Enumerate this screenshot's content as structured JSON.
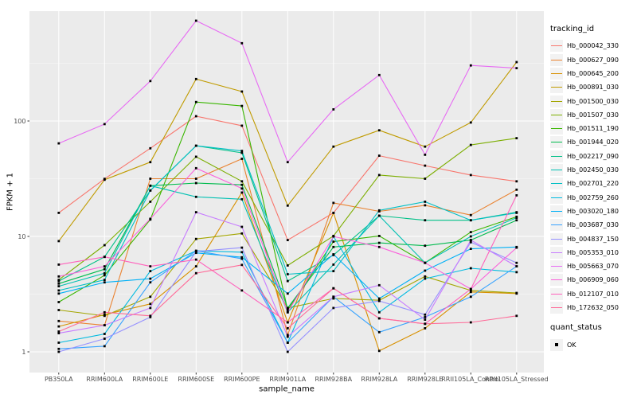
{
  "chart_data": {
    "type": "line",
    "title": "",
    "xlabel": "sample_name",
    "ylabel": "FPKM + 1",
    "y_scale": "log10",
    "y_axis": {
      "ticks": [
        1,
        10,
        100
      ],
      "minor_ticks": [
        3.16,
        31.6,
        316
      ],
      "range": [
        0.95,
        900
      ]
    },
    "categories": [
      "PB350LA",
      "RRIM600LA",
      "RRIM600LE",
      "RRIM600SE",
      "RRIM600PE",
      "RRIM901LA",
      "RRIM928BA",
      "RRIM928LA",
      "RRIM928LE",
      "RRII105LA_Control",
      "RRII105LA_Stressed"
    ],
    "series": [
      {
        "name": "Hb_000042_330",
        "color": "#F8766D",
        "values": [
          16,
          31.5,
          58,
          110,
          91,
          9.3,
          16,
          50,
          41,
          34,
          30
        ]
      },
      {
        "name": "Hb_000627_090",
        "color": "#EA8331",
        "values": [
          1.85,
          1.7,
          31.6,
          31.6,
          47,
          1.4,
          19.5,
          16.5,
          18.6,
          15.3,
          25.4
        ]
      },
      {
        "name": "Hb_000645_200",
        "color": "#D89000",
        "values": [
          1.66,
          2.1,
          2.6,
          5.5,
          24,
          1.8,
          16,
          1.02,
          1.6,
          3.3,
          3.2
        ]
      },
      {
        "name": "Hb_000891_030",
        "color": "#C09B00",
        "values": [
          9.1,
          31,
          44,
          231,
          180,
          18.5,
          60,
          83,
          60,
          97,
          324
        ]
      },
      {
        "name": "Hb_001500_030",
        "color": "#A3A500",
        "values": [
          2.3,
          2.05,
          3.0,
          9.5,
          10.6,
          2.4,
          2.9,
          2.8,
          4.5,
          3.4,
          3.24
        ]
      },
      {
        "name": "Hb_001507_030",
        "color": "#7CAE00",
        "values": [
          4.2,
          8.4,
          20,
          49,
          30,
          5.6,
          10.1,
          34,
          31.6,
          62,
          71
        ]
      },
      {
        "name": "Hb_001511_190",
        "color": "#39B600",
        "values": [
          2.7,
          4.6,
          14,
          146,
          135,
          2.3,
          9.0,
          10.1,
          5.9,
          10.9,
          14.8
        ]
      },
      {
        "name": "Hb_001944_020",
        "color": "#00BB4E",
        "values": [
          3.9,
          5.2,
          27.5,
          29,
          28,
          2.4,
          8.1,
          8.8,
          8.3,
          9.3,
          13.8
        ]
      },
      {
        "name": "Hb_002217_090",
        "color": "#00C087",
        "values": [
          4.1,
          6.65,
          25,
          61,
          53,
          4.1,
          6.9,
          15.1,
          13.8,
          13.8,
          16.2
        ]
      },
      {
        "name": "Hb_002450_030",
        "color": "#00C0B2",
        "values": [
          3.7,
          4.8,
          27.5,
          22,
          21,
          2.2,
          5.7,
          15.1,
          5.9,
          10.0,
          14.5
        ]
      },
      {
        "name": "Hb_002701_220",
        "color": "#00BFC4",
        "values": [
          3.4,
          4.2,
          25,
          61,
          55,
          4.7,
          5.0,
          16.8,
          20,
          13.8,
          16.0
        ]
      },
      {
        "name": "Hb_002759_260",
        "color": "#00BAE0",
        "values": [
          1.2,
          1.43,
          5.0,
          7.5,
          7.3,
          1.2,
          10.0,
          2.2,
          4.3,
          5.3,
          4.9
        ]
      },
      {
        "name": "Hb_003020_180",
        "color": "#00B0F6",
        "values": [
          3.2,
          4.0,
          4.3,
          7.2,
          6.6,
          3.2,
          7.0,
          2.9,
          5.05,
          7.8,
          8.1
        ]
      },
      {
        "name": "Hb_003687_030",
        "color": "#35A2FF",
        "values": [
          1.06,
          1.12,
          4.0,
          7.5,
          6.4,
          1.2,
          3.0,
          1.48,
          2.0,
          3.0,
          5.5
        ]
      },
      {
        "name": "Hb_004837_150",
        "color": "#9590FF",
        "values": [
          1.0,
          1.3,
          2.0,
          7.4,
          8.0,
          1.0,
          2.4,
          2.76,
          2.1,
          8.9,
          5.9
        ]
      },
      {
        "name": "Hb_005353_010",
        "color": "#C77CFF",
        "values": [
          1.45,
          1.7,
          2.4,
          16.2,
          12.1,
          1.35,
          3.0,
          3.78,
          1.9,
          9.3,
          5.5
        ]
      },
      {
        "name": "Hb_005663_070",
        "color": "#E76BF3",
        "values": [
          64,
          94,
          222,
          740,
          472,
          44,
          126,
          250,
          51,
          303,
          287
        ]
      },
      {
        "name": "Hb_006909_060",
        "color": "#FA62DB",
        "values": [
          4.5,
          5.5,
          14.2,
          39,
          26,
          2.2,
          10,
          8.1,
          5.9,
          3.5,
          8.0
        ]
      },
      {
        "name": "Hb_012107_010",
        "color": "#FF62BC",
        "values": [
          5.7,
          6.65,
          5.5,
          6.3,
          3.4,
          1.8,
          3.55,
          1.95,
          1.75,
          3.5,
          22.7
        ]
      },
      {
        "name": "Hb_172632_050",
        "color": "#FF6A98",
        "values": [
          1.5,
          2.2,
          2.05,
          4.8,
          5.66,
          1.6,
          3.55,
          1.95,
          1.75,
          1.8,
          2.05
        ]
      }
    ],
    "legend": {
      "title": "tracking_id",
      "position": "right"
    },
    "quant_legend": {
      "title": "quant_status",
      "items": [
        {
          "label": "OK",
          "marker": "filled-black-square"
        }
      ]
    },
    "style": {
      "panel_bg": "#EBEBEB",
      "grid_major": "#FFFFFF",
      "grid_minor": "#F7F7F7",
      "marker_color": "#000000",
      "tick_label_color": "#4D4D4D",
      "tick_mark_color": "#333333",
      "text_color": "#000000"
    }
  }
}
